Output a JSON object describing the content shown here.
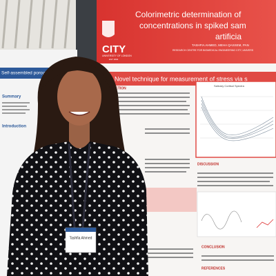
{
  "main_poster": {
    "title_line1": "Colorimetric determination of",
    "title_line2": "concentrations in spiked sam",
    "title_line3": "artificia",
    "logo_name": "CITY",
    "logo_sub": "UNIVERSITY OF LONDON",
    "logo_est": "EST 1894",
    "authors": "TASHFIA AHMED, MEHA QASSEM, PAN",
    "affiliation": "RESEARCH CENTRE FOR BIOMEDICAL ENGINEERING CITY, UNIVERS",
    "banner": "Novel technique for measurement of stress via s",
    "section_intro": "DUCTION",
    "chart_title": "Salivary Cortisol Spectra",
    "section_discussion": "DISCUSSION",
    "section_conclusion": "CONCLUSION",
    "section_references": "REFERENCES"
  },
  "side_poster": {
    "title": "Self-assembled porous polymer",
    "section_summary": "Summary",
    "section_intro": "Introduction"
  },
  "badge": {
    "name": "Tashfia Ahmed"
  }
}
